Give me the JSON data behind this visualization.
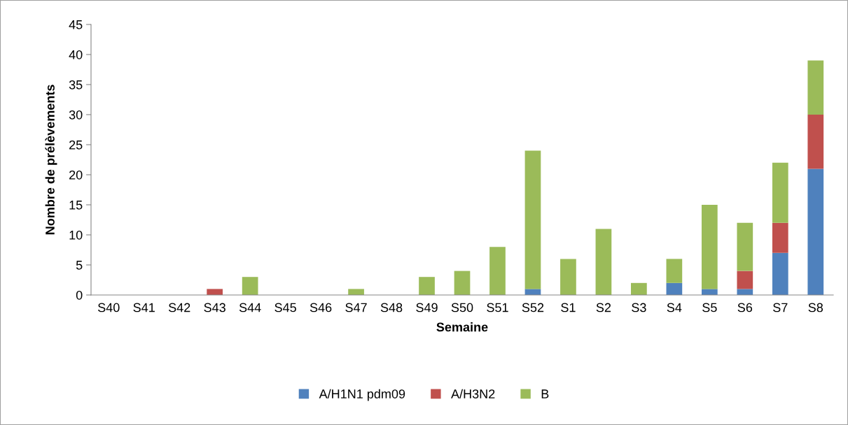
{
  "chart_data": {
    "type": "bar",
    "stacked": true,
    "xlabel": "Semaine",
    "ylabel": "Nombre de prélèvements",
    "categories": [
      "S40",
      "S41",
      "S42",
      "S43",
      "S44",
      "S45",
      "S46",
      "S47",
      "S48",
      "S49",
      "S50",
      "S51",
      "S52",
      "S1",
      "S2",
      "S3",
      "S4",
      "S5",
      "S6",
      "S7",
      "S8"
    ],
    "series": [
      {
        "name": "A/H1N1 pdm09",
        "color": "#4f81bd",
        "values": [
          0,
          0,
          0,
          0,
          0,
          0,
          0,
          0,
          0,
          0,
          0,
          0,
          1,
          0,
          0,
          0,
          2,
          1,
          1,
          7,
          21
        ]
      },
      {
        "name": "A/H3N2",
        "color": "#c0504d",
        "values": [
          0,
          0,
          0,
          1,
          0,
          0,
          0,
          0,
          0,
          0,
          0,
          0,
          0,
          0,
          0,
          0,
          0,
          0,
          3,
          5,
          9
        ]
      },
      {
        "name": "B",
        "color": "#9bbb59",
        "values": [
          0,
          0,
          0,
          0,
          3,
          0,
          0,
          1,
          0,
          3,
          4,
          8,
          23,
          6,
          11,
          2,
          4,
          14,
          8,
          10,
          9
        ]
      }
    ],
    "ylim": [
      0,
      45
    ],
    "yticks": [
      0,
      5,
      10,
      15,
      20,
      25,
      30,
      35,
      40,
      45
    ],
    "grid": false,
    "legend": "bottom"
  }
}
